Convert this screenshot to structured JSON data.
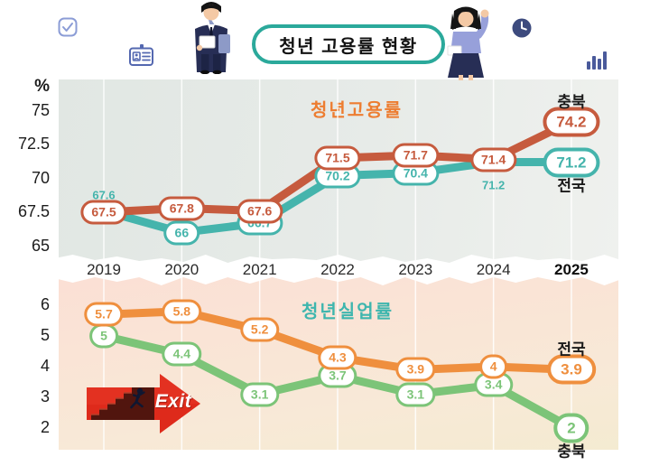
{
  "header": {
    "title": "청년 고용률 현황"
  },
  "x_axis": {
    "bold_label": "2025"
  },
  "exit_arrow": {
    "label": "Exit"
  },
  "colors": {
    "banner_border": "#2BA99B",
    "employment_chungbuk": "#C65B3E",
    "employment_national": "#45B4AC",
    "unemployment_national": "#EF8F3E",
    "unemployment_chungbuk": "#7CC478"
  },
  "decor": {
    "icons": [
      "checkbox-icon",
      "id-card-icon",
      "clock-icon",
      "bar-chart-icon"
    ],
    "figures": [
      "businessman-illustration",
      "businesswoman-illustration"
    ]
  },
  "chart_data": [
    {
      "type": "line",
      "title": "청년고용률",
      "title_color": "#ED7D31",
      "unit": "%",
      "categories": [
        "2019",
        "2020",
        "2021",
        "2022",
        "2023",
        "2024",
        "2025"
      ],
      "yticks": [
        "75",
        "72.5",
        "70",
        "67.5",
        "65"
      ],
      "ytick_values": [
        75,
        72.5,
        70,
        67.5,
        65
      ],
      "ylim": [
        64.3,
        76.2
      ],
      "grid": "vertical-white",
      "legend_position": "end-of-line",
      "series": [
        {
          "name": "전국",
          "color": "#45B4AC",
          "values": [
            67.6,
            66,
            66.7,
            70.2,
            70.4,
            71.2,
            71.2
          ],
          "markers": [
            "text-above",
            "pill",
            "pill",
            "pill",
            "pill",
            "text-below",
            "pill-bold"
          ],
          "end_label": {
            "text": "전국",
            "position": "below"
          }
        },
        {
          "name": "충북",
          "color": "#C65B3E",
          "values": [
            67.5,
            67.8,
            67.6,
            71.5,
            71.7,
            71.4,
            74.2
          ],
          "markers": [
            "pill",
            "pill",
            "pill",
            "pill",
            "pill",
            "pill",
            "pill-bold"
          ],
          "end_label": {
            "text": "충북",
            "position": "above"
          }
        }
      ]
    },
    {
      "type": "line",
      "title": "청년실업률",
      "title_color": "#3EB6AE",
      "unit": "",
      "categories": [
        "2019",
        "2020",
        "2021",
        "2022",
        "2023",
        "2024",
        "2025"
      ],
      "yticks": [
        "6",
        "5",
        "4",
        "3",
        "2"
      ],
      "ytick_values": [
        6,
        5,
        4,
        3,
        2
      ],
      "ylim": [
        1.6,
        6.5
      ],
      "grid": "vertical-white",
      "legend_position": "end-of-line",
      "series": [
        {
          "name": "충북",
          "color": "#7CC478",
          "values": [
            5,
            4.4,
            3.1,
            3.7,
            3.1,
            3.4,
            2
          ],
          "markers": [
            "pill",
            "pill",
            "pill",
            "pill",
            "pill",
            "pill",
            "pill-bold"
          ],
          "end_label": {
            "text": "충북",
            "position": "below"
          }
        },
        {
          "name": "전국",
          "color": "#EF8F3E",
          "values": [
            5.7,
            5.8,
            5.2,
            4.3,
            3.9,
            4,
            3.9
          ],
          "markers": [
            "pill",
            "pill",
            "pill",
            "pill",
            "pill",
            "pill",
            "pill-bold"
          ],
          "end_label": {
            "text": "전국",
            "position": "above"
          }
        }
      ]
    }
  ]
}
